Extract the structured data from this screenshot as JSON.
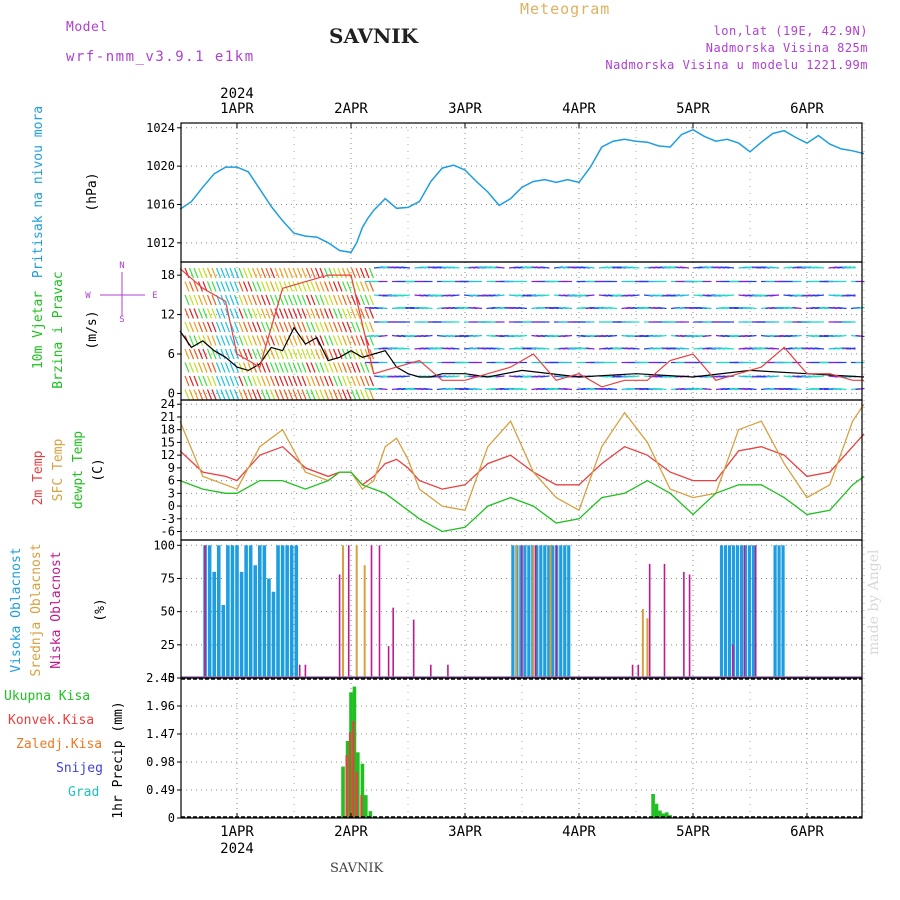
{
  "header": {
    "model_label": "Model",
    "model_name": "wrf-nmm_v3.9.1 e1km",
    "station": "SAVNIK",
    "title": "Meteogram",
    "lonlat": "lon,lat (19E, 42.9N)",
    "elevation": "Nadmorska Visina 825m",
    "model_elevation": "Nadmorska Visina u modelu 1221.99m",
    "footer": "SAVNIK",
    "credit": "made by Angel"
  },
  "colors": {
    "pressure": "#1e9ee0",
    "t2m": "#e84040",
    "tsfc": "#d8a040",
    "dewpoint": "#20c020",
    "high_cloud": "#1e9ee0",
    "mid_cloud": "#d8a040",
    "low_cloud": "#c01890",
    "total_precip": "#20c020",
    "conv_precip": "#e84040",
    "frz_precip": "#f07820",
    "snow": "#4040e0",
    "graupel": "#20c0c0",
    "purple_text": "#b040d0",
    "title_text": "#e0b060"
  },
  "chart_data": [
    {
      "type": "line",
      "panel": "pressure",
      "ylabel": [
        "Pritisak na nivou mora",
        "(hPa)"
      ],
      "ylim": [
        1010,
        1024.5
      ],
      "yticks": [
        "1012",
        "1016",
        "1020",
        "1024"
      ],
      "ytick_values": [
        1012,
        1016,
        1020,
        1024
      ],
      "x_day_labels": [
        "1APR",
        "2APR",
        "3APR",
        "4APR",
        "5APR",
        "6APR"
      ],
      "x_year": "2024",
      "x_range_days": [
        -0.5,
        5.53
      ],
      "grid": true,
      "series": [
        {
          "color": "pressure",
          "x": [
            -0.5,
            -0.4,
            -0.3,
            -0.2,
            -0.1,
            0,
            0.1,
            0.2,
            0.3,
            0.4,
            0.5,
            0.6,
            0.7,
            0.8,
            0.9,
            1.0,
            1.05,
            1.1,
            1.15,
            1.2,
            1.3,
            1.4,
            1.5,
            1.6,
            1.7,
            1.8,
            1.9,
            2.0,
            2.1,
            2.2,
            2.3,
            2.4,
            2.5,
            2.6,
            2.7,
            2.8,
            2.9,
            3.0,
            3.1,
            3.2,
            3.3,
            3.4,
            3.5,
            3.6,
            3.7,
            3.8,
            3.9,
            4.0,
            4.1,
            4.2,
            4.3,
            4.4,
            4.5,
            4.6,
            4.7,
            4.8,
            4.9,
            5.0,
            5.1,
            5.2,
            5.3,
            5.4,
            5.5
          ],
          "values": [
            1015.5,
            1016.3,
            1017.8,
            1019.2,
            1019.9,
            1019.9,
            1019.4,
            1017.6,
            1015.8,
            1014.3,
            1013.0,
            1012.7,
            1012.6,
            1012.0,
            1011.2,
            1011.0,
            1012.0,
            1013.6,
            1014.6,
            1015.4,
            1016.6,
            1015.6,
            1015.7,
            1016.3,
            1018.4,
            1019.8,
            1020.1,
            1019.6,
            1018.4,
            1017.3,
            1015.9,
            1016.6,
            1017.8,
            1018.4,
            1018.6,
            1018.3,
            1018.6,
            1018.3,
            1019.9,
            1022.0,
            1022.6,
            1022.8,
            1022.6,
            1022.5,
            1022.1,
            1022.0,
            1023.3,
            1023.8,
            1023.1,
            1022.6,
            1022.8,
            1022.4,
            1021.5,
            1022.5,
            1023.4,
            1023.7,
            1023.0,
            1022.4,
            1023.2,
            1022.3,
            1021.8,
            1021.6,
            1021.3
          ]
        }
      ]
    },
    {
      "type": "line",
      "panel": "wind",
      "ylabel": [
        "10m Vjetar",
        "Brzina i Pravac",
        "(m/s)"
      ],
      "compass": [
        "N",
        "W",
        "E",
        "S"
      ],
      "ylim": [
        -1,
        20
      ],
      "yticks": [
        "0",
        "6",
        "12",
        "18"
      ],
      "ytick_values": [
        0,
        6,
        12,
        18
      ],
      "series": [
        {
          "name": "mean",
          "color": "#000000",
          "x": [
            -0.5,
            -0.4,
            -0.3,
            -0.2,
            -0.1,
            0,
            0.1,
            0.2,
            0.3,
            0.4,
            0.5,
            0.6,
            0.7,
            0.8,
            0.9,
            1.0,
            1.1,
            1.2,
            1.3,
            1.4,
            1.5,
            1.6,
            1.7,
            1.8,
            2.0,
            2.2,
            2.5,
            3.0,
            3.5,
            4.0,
            4.5,
            5.0,
            5.5
          ],
          "values": [
            9.5,
            7.0,
            8.0,
            6.5,
            5.5,
            4.0,
            3.5,
            4.5,
            7.0,
            6.5,
            10.0,
            7.5,
            8.5,
            5.0,
            5.5,
            6.5,
            5.5,
            6.0,
            6.5,
            4.0,
            3.0,
            2.5,
            2.5,
            3.0,
            3.0,
            2.5,
            3.5,
            2.5,
            3.0,
            2.5,
            3.5,
            3.0,
            2.5
          ]
        },
        {
          "name": "gust",
          "color": "#e84040",
          "x": [
            -0.5,
            -0.3,
            -0.1,
            0,
            0.2,
            0.4,
            0.6,
            0.8,
            1.0,
            1.2,
            1.4,
            1.6,
            1.8,
            2.0,
            2.2,
            2.4,
            2.6,
            2.8,
            3.0,
            3.2,
            3.4,
            3.6,
            3.8,
            4.0,
            4.2,
            4.4,
            4.6,
            4.8,
            5.0,
            5.2,
            5.4,
            5.5
          ],
          "values": [
            19,
            16,
            14,
            6,
            4,
            16,
            17,
            18,
            18,
            3,
            4,
            5,
            2,
            2,
            3,
            4,
            6,
            2,
            3,
            1,
            2,
            2,
            5,
            6,
            2,
            3,
            4,
            7,
            3,
            3,
            2,
            2
          ]
        }
      ]
    },
    {
      "type": "line",
      "panel": "temperature",
      "ylabel": [
        "2m Temp",
        "SFC Temp",
        "dewpt Temp",
        "(C)"
      ],
      "ylim": [
        -8,
        25
      ],
      "yticks": [
        "-6",
        "-3",
        "0",
        "3",
        "6",
        "9",
        "12",
        "15",
        "18",
        "21",
        "24"
      ],
      "ytick_values": [
        -6,
        -3,
        0,
        3,
        6,
        9,
        12,
        15,
        18,
        21,
        24
      ],
      "series": [
        {
          "name": "2m Temp",
          "color": "t2m",
          "x": [
            -0.5,
            -0.3,
            -0.1,
            0,
            0.2,
            0.4,
            0.6,
            0.8,
            0.9,
            1.0,
            1.1,
            1.2,
            1.3,
            1.4,
            1.5,
            1.6,
            1.8,
            2.0,
            2.2,
            2.4,
            2.6,
            2.8,
            3.0,
            3.2,
            3.4,
            3.6,
            3.8,
            4.0,
            4.2,
            4.4,
            4.6,
            4.8,
            5.0,
            5.2,
            5.4,
            5.5
          ],
          "values": [
            13,
            8,
            7,
            6,
            12,
            14,
            9,
            7,
            8,
            8,
            5,
            7,
            10,
            11,
            9,
            6,
            4,
            5,
            10,
            12,
            8,
            5,
            5,
            10,
            14,
            12,
            8,
            6,
            6,
            13,
            14,
            12,
            7,
            8,
            14,
            17
          ]
        },
        {
          "name": "SFC Temp",
          "color": "tsfc",
          "x": [
            -0.5,
            -0.3,
            -0.1,
            0,
            0.2,
            0.4,
            0.6,
            0.8,
            0.9,
            1.0,
            1.1,
            1.2,
            1.3,
            1.4,
            1.5,
            1.6,
            1.8,
            2.0,
            2.2,
            2.4,
            2.6,
            2.8,
            3.0,
            3.2,
            3.4,
            3.6,
            3.8,
            4.0,
            4.2,
            4.4,
            4.6,
            4.8,
            5.0,
            5.2,
            5.4,
            5.5
          ],
          "values": [
            20,
            7,
            5,
            4,
            14,
            18,
            8,
            6,
            8,
            8,
            4,
            6,
            14,
            16,
            11,
            4,
            0,
            -1,
            14,
            20,
            8,
            2,
            -1,
            14,
            22,
            15,
            4,
            2,
            3,
            18,
            20,
            10,
            2,
            5,
            20,
            24
          ]
        },
        {
          "name": "dewpt Temp",
          "color": "dewpoint",
          "x": [
            -0.5,
            -0.3,
            -0.1,
            0,
            0.2,
            0.4,
            0.6,
            0.8,
            0.9,
            1.0,
            1.1,
            1.2,
            1.3,
            1.4,
            1.5,
            1.6,
            1.8,
            2.0,
            2.2,
            2.4,
            2.6,
            2.8,
            3.0,
            3.2,
            3.4,
            3.6,
            3.8,
            4.0,
            4.2,
            4.4,
            4.6,
            4.8,
            5.0,
            5.2,
            5.4,
            5.5
          ],
          "values": [
            6,
            4,
            3,
            3,
            6,
            6,
            4,
            6,
            8,
            8,
            5,
            4,
            3,
            1,
            -1,
            -3,
            -6,
            -5,
            0,
            2,
            0,
            -4,
            -3,
            2,
            3,
            6,
            3,
            -2,
            3,
            5,
            5,
            2,
            -2,
            -1,
            5,
            7
          ]
        }
      ]
    },
    {
      "type": "bar",
      "panel": "clouds",
      "ylabel": [
        "Visoka Oblacnost",
        "Srednja Oblacnost",
        "Niska Oblacnost",
        "(%)"
      ],
      "ylim": [
        0,
        104
      ],
      "yticks": [
        "0",
        "25",
        "50",
        "75",
        "100"
      ],
      "ytick_values": [
        0,
        25,
        50,
        75,
        100
      ],
      "series": [
        {
          "name": "Visoka Oblacnost",
          "color": "high_cloud",
          "x": [
            -0.28,
            -0.24,
            -0.2,
            -0.16,
            -0.12,
            -0.08,
            -0.04,
            0,
            0.04,
            0.08,
            0.12,
            0.16,
            0.2,
            0.24,
            0.28,
            0.32,
            0.36,
            0.4,
            0.44,
            0.48,
            0.52,
            3.4,
            3.44,
            3.48,
            3.52,
            3.56,
            3.6,
            3.64,
            3.68,
            3.72,
            3.76,
            3.8,
            3.84,
            3.88,
            3.92,
            3.96,
            4.0,
            4.04,
            4.08,
            4.12,
            4.16,
            4.2,
            4.24,
            4.28,
            4.32,
            4.36,
            4.4,
            4.44,
            4.48,
            4.52,
            4.56,
            4.6,
            4.64,
            4.68,
            4.72,
            4.76,
            4.8,
            4.84,
            4.88,
            4.92,
            4.96,
            5.0,
            5.04,
            5.08,
            5.12,
            5.16,
            5.2,
            5.24,
            5.28,
            5.32,
            5.36,
            5.4,
            5.44,
            5.48,
            5.52
          ],
          "values": [
            100,
            100,
            80,
            100,
            55,
            100,
            100,
            100,
            80,
            100,
            100,
            85,
            100,
            100,
            75,
            65,
            100,
            100,
            100,
            100,
            100,
            0,
            0,
            0,
            0,
            0,
            0,
            0,
            0,
            0,
            0,
            0,
            0,
            0,
            0,
            0,
            0,
            0,
            0,
            0,
            0,
            0,
            0,
            0,
            0,
            0,
            0,
            0,
            0,
            0,
            0,
            0,
            0,
            0,
            0,
            0,
            0,
            0,
            0,
            0,
            0,
            0,
            0,
            0,
            0,
            0,
            0,
            0,
            0,
            0,
            0,
            0,
            0,
            0,
            0
          ]
        }
      ]
    },
    {
      "type": "bar",
      "panel": "precip",
      "ylabel": [
        "1hr Precip (mm)"
      ],
      "legend": [
        "Ukupna Kisa",
        "Konvek.Kisa",
        "Zaledj.Kisa",
        "Snijeg",
        "Grad"
      ],
      "ylim": [
        0,
        2.45
      ],
      "yticks": [
        "0",
        "0.49",
        "0.98",
        "1.47",
        "1.96",
        "2.45"
      ],
      "ytick_values": [
        0,
        0.49,
        0.98,
        1.47,
        1.96,
        2.45
      ],
      "series": [
        {
          "name": "Ukupna Kisa",
          "color": "total_precip",
          "x": [
            0.93,
            0.97,
            1.0,
            1.03,
            1.06,
            1.1,
            1.13,
            1.17,
            1.2,
            3.65,
            3.68,
            3.71,
            3.74,
            3.77,
            3.8,
            5.05,
            5.08
          ],
          "values": [
            0.9,
            1.35,
            2.2,
            2.3,
            1.15,
            0.95,
            0.4,
            0.12,
            0.02,
            0.42,
            0.25,
            0.13,
            0.08,
            0.1,
            0.05,
            0.02,
            0.02
          ]
        },
        {
          "name": "Konvek.Kisa",
          "color": "conv_precip",
          "x": [
            0.97,
            1.0,
            1.03,
            1.06,
            1.1
          ],
          "values": [
            1.1,
            1.5,
            1.7,
            0.8,
            0.4
          ]
        }
      ]
    }
  ]
}
